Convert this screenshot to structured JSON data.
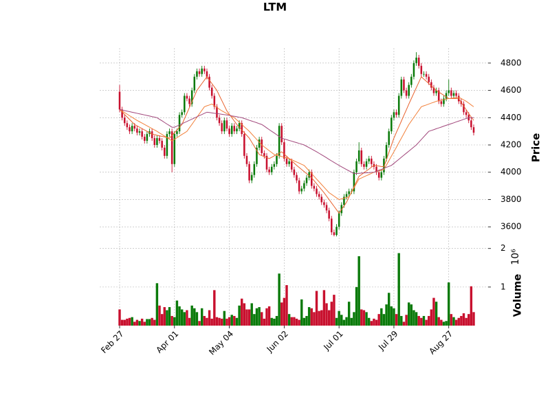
{
  "chart_data": {
    "type": "candlestick",
    "title": "LTM",
    "ylabel": "Price",
    "y2label": "Volume",
    "y2_offset_label": "10⁶",
    "up_color": "#0a7a0a",
    "down_color": "#c8102e",
    "grid": true,
    "categories": [
      "Feb 27",
      null,
      null,
      null,
      null,
      null,
      null,
      null,
      null,
      null,
      null,
      null,
      null,
      null,
      null,
      null,
      null,
      null,
      null,
      null,
      null,
      null,
      "Apr 01",
      null,
      null,
      null,
      null,
      null,
      null,
      null,
      null,
      null,
      null,
      null,
      null,
      null,
      null,
      null,
      null,
      null,
      null,
      null,
      null,
      null,
      "May 04",
      null,
      null,
      null,
      null,
      null,
      null,
      null,
      null,
      null,
      null,
      null,
      null,
      null,
      null,
      null,
      null,
      null,
      null,
      null,
      null,
      null,
      "Jun 02",
      null,
      null,
      null,
      null,
      null,
      null,
      null,
      null,
      null,
      null,
      null,
      null,
      null,
      null,
      null,
      null,
      null,
      null,
      null,
      null,
      null,
      "Jul 01",
      null,
      null,
      null,
      null,
      null,
      null,
      null,
      null,
      null,
      null,
      null,
      null,
      null,
      null,
      null,
      null,
      null,
      null,
      null,
      null,
      null,
      "Jul 29",
      null,
      null,
      null,
      null,
      null,
      null,
      null,
      null,
      null,
      null,
      null,
      null,
      null,
      null,
      null,
      null,
      null,
      null,
      null,
      null,
      null,
      "Aug 27",
      null,
      null,
      null,
      null,
      null,
      null,
      null,
      null,
      null,
      null
    ],
    "open": [
      4590,
      4460,
      4400,
      4360,
      4330,
      4300,
      4340,
      4320,
      4290,
      4300,
      4260,
      4230,
      4280,
      4300,
      4250,
      4200,
      4250,
      4230,
      4180,
      4120,
      4280,
      4300,
      4060,
      4280,
      4300,
      4420,
      4440,
      4560,
      4540,
      4500,
      4600,
      4700,
      4740,
      4720,
      4760,
      4740,
      4700,
      4620,
      4560,
      4480,
      4400,
      4360,
      4300,
      4380,
      4320,
      4280,
      4340,
      4300,
      4320,
      4360,
      4280,
      4120,
      4060,
      3940,
      3980,
      4060,
      4180,
      4240,
      4140,
      4120,
      4020,
      4000,
      4040,
      4060,
      4120,
      4340,
      4220,
      4100,
      4060,
      4080,
      4020,
      3980,
      3940,
      3860,
      3880,
      3920,
      3960,
      4000,
      3900,
      3880,
      3840,
      3820,
      3780,
      3760,
      3720,
      3660,
      3560,
      3540,
      3600,
      3700,
      3760,
      3820,
      3840,
      3860,
      3860,
      4000,
      4080,
      4160,
      4060,
      4040,
      4080,
      4100,
      4060,
      4040,
      4000,
      3960,
      4000,
      4100,
      4200,
      4300,
      4400,
      4440,
      4420,
      4560,
      4680,
      4600,
      4560,
      4640,
      4700,
      4800,
      4840,
      4780,
      4720,
      4720,
      4700,
      4660,
      4620,
      4580,
      4600,
      4520,
      4500,
      4540,
      4580,
      4600,
      4560,
      4580,
      4560,
      4520,
      4500,
      4440,
      4420,
      4380,
      4330
    ],
    "high": [
      4640,
      4480,
      4420,
      4380,
      4350,
      4360,
      4360,
      4340,
      4320,
      4320,
      4280,
      4300,
      4320,
      4320,
      4270,
      4270,
      4270,
      4250,
      4200,
      4300,
      4320,
      4320,
      4300,
      4320,
      4440,
      4460,
      4580,
      4580,
      4560,
      4620,
      4720,
      4760,
      4760,
      4780,
      4780,
      4760,
      4720,
      4640,
      4580,
      4500,
      4420,
      4380,
      4400,
      4400,
      4340,
      4360,
      4360,
      4340,
      4380,
      4380,
      4300,
      4140,
      4080,
      4000,
      4080,
      4200,
      4260,
      4260,
      4160,
      4140,
      4040,
      4060,
      4080,
      4140,
      4360,
      4360,
      4240,
      4120,
      4100,
      4100,
      4040,
      4000,
      3960,
      3900,
      3940,
      3980,
      4020,
      4020,
      3920,
      3900,
      3860,
      3840,
      3800,
      3780,
      3740,
      3680,
      3580,
      3620,
      3720,
      3780,
      3840,
      3860,
      3880,
      3880,
      4020,
      4100,
      4220,
      4180,
      4080,
      4100,
      4120,
      4120,
      4080,
      4060,
      4020,
      4020,
      4120,
      4220,
      4320,
      4420,
      4460,
      4460,
      4580,
      4700,
      4700,
      4620,
      4660,
      4720,
      4820,
      4880,
      4860,
      4800,
      4740,
      4740,
      4720,
      4680,
      4640,
      4620,
      4620,
      4540,
      4560,
      4600,
      4680,
      4620,
      4600,
      4600,
      4580,
      4540,
      4520,
      4460,
      4440,
      4400,
      4350
    ],
    "low": [
      4440,
      4380,
      4340,
      4310,
      4280,
      4280,
      4300,
      4270,
      4270,
      4240,
      4210,
      4210,
      4260,
      4230,
      4180,
      4180,
      4210,
      4160,
      4100,
      4100,
      4260,
      4000,
      4040,
      4260,
      4280,
      4400,
      4420,
      4520,
      4480,
      4480,
      4580,
      4680,
      4700,
      4700,
      4720,
      4680,
      4600,
      4540,
      4460,
      4380,
      4340,
      4280,
      4280,
      4300,
      4260,
      4260,
      4280,
      4280,
      4300,
      4260,
      4100,
      4040,
      3920,
      3920,
      3960,
      4040,
      4160,
      4120,
      4100,
      4000,
      3980,
      3980,
      4020,
      4040,
      4100,
      4200,
      4080,
      4040,
      4040,
      4000,
      3960,
      3920,
      3840,
      3840,
      3860,
      3900,
      3940,
      3880,
      3860,
      3820,
      3800,
      3760,
      3740,
      3700,
      3640,
      3540,
      3530,
      3530,
      3580,
      3680,
      3740,
      3800,
      3820,
      3840,
      3840,
      3980,
      4060,
      4040,
      4020,
      4020,
      4060,
      4040,
      4020,
      3980,
      3940,
      3940,
      3980,
      4080,
      4180,
      4280,
      4380,
      4400,
      4400,
      4540,
      4580,
      4540,
      4540,
      4620,
      4680,
      4780,
      4760,
      4700,
      4700,
      4680,
      4640,
      4600,
      4560,
      4560,
      4500,
      4480,
      4480,
      4520,
      4560,
      4540,
      4540,
      4540,
      4500,
      4480,
      4420,
      4400,
      4360,
      4310,
      4270
    ],
    "close": [
      4460,
      4400,
      4360,
      4330,
      4300,
      4340,
      4320,
      4290,
      4300,
      4260,
      4230,
      4280,
      4300,
      4250,
      4200,
      4250,
      4230,
      4180,
      4120,
      4280,
      4300,
      4060,
      4280,
      4300,
      4420,
      4440,
      4560,
      4540,
      4500,
      4600,
      4700,
      4740,
      4720,
      4760,
      4740,
      4700,
      4620,
      4560,
      4480,
      4400,
      4360,
      4300,
      4380,
      4320,
      4280,
      4340,
      4300,
      4320,
      4360,
      4280,
      4120,
      4060,
      3940,
      3980,
      4060,
      4180,
      4240,
      4140,
      4120,
      4020,
      4000,
      4040,
      4060,
      4120,
      4340,
      4220,
      4100,
      4060,
      4080,
      4020,
      3980,
      3940,
      3860,
      3880,
      3920,
      3960,
      4000,
      3900,
      3880,
      3840,
      3820,
      3780,
      3760,
      3720,
      3660,
      3560,
      3540,
      3600,
      3700,
      3760,
      3820,
      3840,
      3860,
      3860,
      4000,
      4080,
      4160,
      4060,
      4040,
      4080,
      4100,
      4060,
      4040,
      4000,
      3960,
      4000,
      4100,
      4200,
      4300,
      4400,
      4440,
      4420,
      4560,
      4680,
      4600,
      4560,
      4640,
      4700,
      4800,
      4840,
      4780,
      4720,
      4720,
      4700,
      4660,
      4620,
      4580,
      4600,
      4520,
      4500,
      4540,
      4580,
      4600,
      4560,
      4580,
      4560,
      4520,
      4500,
      4440,
      4420,
      4380,
      4330,
      4290
    ],
    "volume": [
      0.42,
      0.15,
      0.15,
      0.18,
      0.2,
      0.22,
      0.1,
      0.15,
      0.12,
      0.18,
      0.1,
      0.17,
      0.17,
      0.2,
      0.15,
      1.1,
      0.52,
      0.3,
      0.48,
      0.4,
      0.48,
      0.25,
      0.22,
      0.65,
      0.5,
      0.42,
      0.35,
      0.4,
      0.2,
      0.52,
      0.45,
      0.35,
      0.12,
      0.45,
      0.25,
      0.2,
      0.4,
      0.18,
      0.92,
      0.22,
      0.2,
      0.18,
      0.38,
      0.18,
      0.22,
      0.28,
      0.25,
      0.2,
      0.52,
      0.7,
      0.58,
      0.42,
      0.42,
      0.58,
      0.3,
      0.45,
      0.48,
      0.35,
      0.18,
      0.45,
      0.5,
      0.2,
      0.18,
      0.25,
      1.35,
      0.6,
      0.72,
      1.05,
      0.3,
      0.22,
      0.22,
      0.18,
      0.15,
      0.68,
      0.2,
      0.25,
      0.48,
      0.45,
      0.35,
      0.9,
      0.38,
      0.4,
      0.92,
      0.58,
      0.4,
      0.62,
      0.8,
      0.2,
      0.38,
      0.28,
      0.15,
      0.22,
      0.62,
      0.2,
      0.35,
      1.0,
      1.8,
      0.42,
      0.4,
      0.35,
      0.2,
      0.12,
      0.18,
      0.15,
      0.3,
      0.45,
      0.3,
      0.55,
      0.85,
      0.5,
      0.45,
      0.3,
      1.88,
      0.25,
      0.1,
      0.28,
      0.6,
      0.55,
      0.4,
      0.35,
      0.25,
      0.2,
      0.25,
      0.15,
      0.25,
      0.42,
      0.72,
      0.62,
      0.22,
      0.15,
      0.1,
      0.12,
      1.12,
      0.3,
      0.22,
      0.15,
      0.2,
      0.25,
      0.32,
      0.2,
      0.3,
      1.02,
      0.35
    ],
    "moving_averages": [
      {
        "color": "#e8612c",
        "values": [
          4460,
          4442,
          4423,
          4405,
          4387,
          4368,
          4350,
          4340,
          4330,
          4320,
          4310,
          4300,
          4290,
          4280,
          4276,
          4271,
          4267,
          4263,
          4259,
          4254,
          4250,
          4270,
          4290,
          4310,
          4330,
          4350,
          4392,
          4433,
          4475,
          4517,
          4558,
          4600,
          4625,
          4650,
          4675,
          4700,
          4675,
          4650,
          4625,
          4600,
          4562,
          4525,
          4488,
          4450,
          4425,
          4400,
          4375,
          4350,
          4330,
          4310,
          4290,
          4270,
          4250,
          4220,
          4190,
          4160,
          4130,
          4122,
          4115,
          4108,
          4100,
          4110,
          4120,
          4130,
          4140,
          4150,
          4133,
          4117,
          4100,
          4083,
          4067,
          4050,
          4035,
          4020,
          4005,
          3990,
          3975,
          3960,
          3938,
          3916,
          3894,
          3872,
          3850,
          3825,
          3800,
          3775,
          3750,
          3725,
          3700,
          3727,
          3753,
          3780,
          3818,
          3856,
          3894,
          3932,
          3970,
          3983,
          3997,
          4010,
          4023,
          4037,
          4050,
          4048,
          4045,
          4042,
          4040,
          4092,
          4145,
          4198,
          4250,
          4292,
          4333,
          4375,
          4417,
          4458,
          4500,
          4540,
          4580,
          4620,
          4660,
          4700,
          4683,
          4667,
          4650,
          4633,
          4617,
          4600,
          4588,
          4576,
          4564,
          4552,
          4540,
          4540,
          4540,
          4540,
          4540,
          4512,
          4485,
          4458,
          4430,
          4405,
          4380
        ]
      },
      {
        "color": "#f2803a",
        "values": [
          4460,
          4449,
          4437,
          4426,
          4414,
          4403,
          4391,
          4380,
          4370,
          4360,
          4350,
          4340,
          4330,
          4320,
          4310,
          4300,
          4288,
          4277,
          4265,
          4253,
          4242,
          4230,
          4242,
          4253,
          4265,
          4277,
          4288,
          4300,
          4326,
          4351,
          4377,
          4403,
          4429,
          4454,
          4480,
          4487,
          4493,
          4500,
          4488,
          4475,
          4462,
          4450,
          4440,
          4430,
          4420,
          4410,
          4400,
          4383,
          4367,
          4350,
          4333,
          4317,
          4300,
          4280,
          4260,
          4240,
          4220,
          4200,
          4186,
          4172,
          4158,
          4144,
          4130,
          4125,
          4120,
          4115,
          4110,
          4105,
          4100,
          4092,
          4083,
          4075,
          4067,
          4058,
          4050,
          4030,
          4010,
          3990,
          3970,
          3950,
          3930,
          3910,
          3890,
          3870,
          3850,
          3838,
          3825,
          3812,
          3800,
          3805,
          3810,
          3815,
          3820,
          3852,
          3885,
          3918,
          3950,
          3958,
          3967,
          3975,
          3983,
          3992,
          4000,
          4005,
          4010,
          4015,
          4020,
          4052,
          4085,
          4118,
          4150,
          4183,
          4217,
          4250,
          4283,
          4317,
          4350,
          4376,
          4402,
          4428,
          4454,
          4480,
          4487,
          4493,
          4500,
          4507,
          4513,
          4520,
          4524,
          4528,
          4532,
          4536,
          4540,
          4542,
          4545,
          4548,
          4550,
          4540,
          4530,
          4520,
          4507,
          4493,
          4480
        ]
      },
      {
        "color": "#a0457a",
        "values": [
          4460,
          4456,
          4452,
          4448,
          4444,
          4440,
          4436,
          4432,
          4428,
          4424,
          4420,
          4416,
          4412,
          4408,
          4404,
          4400,
          4388,
          4377,
          4365,
          4353,
          4342,
          4330,
          4330,
          4338,
          4347,
          4355,
          4364,
          4372,
          4381,
          4389,
          4398,
          4406,
          4415,
          4423,
          4432,
          4440,
          4438,
          4435,
          4432,
          4430,
          4428,
          4425,
          4422,
          4420,
          4417,
          4413,
          4410,
          4407,
          4403,
          4400,
          4394,
          4388,
          4381,
          4375,
          4369,
          4363,
          4356,
          4350,
          4338,
          4325,
          4312,
          4300,
          4288,
          4275,
          4262,
          4250,
          4244,
          4239,
          4233,
          4228,
          4222,
          4217,
          4211,
          4206,
          4200,
          4190,
          4180,
          4170,
          4160,
          4150,
          4139,
          4128,
          4117,
          4106,
          4094,
          4083,
          4072,
          4061,
          4050,
          4040,
          4030,
          4020,
          4010,
          4000,
          3990,
          3991,
          3992,
          3994,
          3995,
          3996,
          3997,
          3999,
          4000,
          4007,
          4014,
          4021,
          4029,
          4036,
          4043,
          4050,
          4065,
          4080,
          4095,
          4110,
          4125,
          4140,
          4155,
          4170,
          4185,
          4200,
          4220,
          4240,
          4260,
          4280,
          4300,
          4306,
          4312,
          4319,
          4325,
          4331,
          4338,
          4344,
          4350,
          4356,
          4362,
          4369,
          4375,
          4381,
          4388,
          4394,
          4400,
          4400,
          4400
        ]
      }
    ],
    "ylim": [
      3475,
      4910
    ],
    "yticks": [
      3600,
      3800,
      4000,
      4200,
      4400,
      4600,
      4800
    ],
    "y2lim": [
      0,
      2.12
    ],
    "y2ticks": [
      1,
      2
    ]
  }
}
